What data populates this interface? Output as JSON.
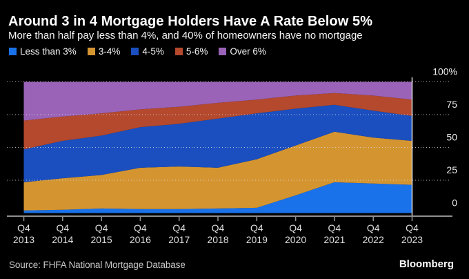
{
  "header": {
    "title": "Around 3 in 4 Mortgage Holders Have A Rate Below 5%",
    "subtitle": "More than half pay less than 4%, and 40% of homeowners have no mortgage"
  },
  "footer": {
    "source": "Source: FHFA National Mortgage Database",
    "logo": "Bloomberg"
  },
  "chart_data": {
    "type": "area",
    "stacked": true,
    "unit": "percent",
    "title": "Around 3 in 4 Mortgage Holders Have A Rate Below 5%",
    "subtitle": "More than half pay less than 4%, and 40% of homeowners have no mortgage",
    "legend_position": "top",
    "grid": "dotted-horizontal",
    "categories": [
      "Q4 2013",
      "Q4 2014",
      "Q4 2015",
      "Q4 2016",
      "Q4 2017",
      "Q4 2018",
      "Q4 2019",
      "Q4 2020",
      "Q4 2021",
      "Q4 2022",
      "Q4 2023"
    ],
    "y_axis": {
      "min": 0,
      "max": 100,
      "side": "right",
      "ticks": [
        0,
        25,
        50,
        75,
        100
      ],
      "tick_labels": [
        "0",
        "25",
        "50",
        "75",
        "100%"
      ]
    },
    "series": [
      {
        "name": "Less than 3%",
        "color": "#1a72ea",
        "values": [
          2,
          2.5,
          3.5,
          3,
          3,
          3.5,
          4,
          13.5,
          23.5,
          22.5,
          21.5
        ]
      },
      {
        "name": "3-4%",
        "color": "#d49531",
        "values": [
          21.5,
          24,
          25.5,
          31.5,
          32.5,
          31,
          37,
          38,
          38.5,
          35,
          33.5
        ]
      },
      {
        "name": "4-5%",
        "color": "#1b4fc0",
        "values": [
          25,
          28.5,
          30,
          31,
          32.5,
          37.5,
          35,
          28,
          20.5,
          20.5,
          19
        ]
      },
      {
        "name": "5-6%",
        "color": "#b4492e",
        "values": [
          22,
          18.5,
          17,
          13.5,
          13,
          12,
          10.5,
          10,
          9,
          11.5,
          12.5
        ]
      },
      {
        "name": "Over 6%",
        "color": "#9a63b8",
        "values": [
          29.5,
          26.5,
          24,
          21,
          19,
          16,
          13.5,
          10.5,
          8.5,
          10.5,
          13.5
        ]
      }
    ]
  }
}
